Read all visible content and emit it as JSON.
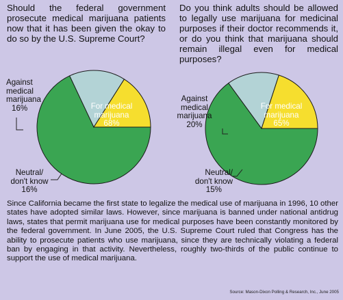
{
  "questions": {
    "q1": "Should the federal government prosecute medical marijuana patients now that it has been given the okay to do so by the U.S. Supreme Court?",
    "q2": "Do you think adults should be allowed to legally use marijuana for medicinal purposes if their doctor recommends it, or do you think that marijuana should remain illegal even for medical purposes?"
  },
  "colors": {
    "background": "#cdc7e6",
    "green": "#3aa552",
    "yellow": "#f6de2e",
    "lightblue": "#b3d3d6",
    "outline": "#1a1a1a"
  },
  "chart_data": [
    {
      "type": "pie",
      "title": "",
      "slices": [
        {
          "label_lines": [
            "For medical",
            "marijuana",
            "68%"
          ],
          "value": 68,
          "color": "#3aa552"
        },
        {
          "label_lines": [
            "Neutral/",
            "don't know",
            "16%"
          ],
          "value": 16,
          "color": "#b3d3d6"
        },
        {
          "label_lines": [
            "Against",
            "medical",
            "marijuana",
            "16%"
          ],
          "value": 16,
          "color": "#f6de2e"
        }
      ]
    },
    {
      "type": "pie",
      "title": "",
      "slices": [
        {
          "label_lines": [
            "For medical",
            "marijuana",
            "65%"
          ],
          "value": 65,
          "color": "#3aa552"
        },
        {
          "label_lines": [
            "Neutral/",
            "don't know",
            "15%"
          ],
          "value": 15,
          "color": "#b3d3d6"
        },
        {
          "label_lines": [
            "Against",
            "medical",
            "marijuana",
            "20%"
          ],
          "value": 20,
          "color": "#f6de2e"
        }
      ]
    }
  ],
  "body_text": "Since California became the first state to legalize the medical use of marijuana in 1996, 10 other states have adopted similar laws. However, since marijuana is banned under national antidrug laws, states that permit marijuana use for medical purposes have been constantly monitored by the federal government. In June 2005, the U.S. Supreme Court ruled that Congress has the ability to prosecute patients who use marijuana, since they are technically violating a federal ban by engaging in that activity. Nevertheless, roughly two-thirds of the public continue to support the use of medical marijuana.",
  "source": "Source: Mason-Dixon Polling & Research, Inc., June 2005"
}
